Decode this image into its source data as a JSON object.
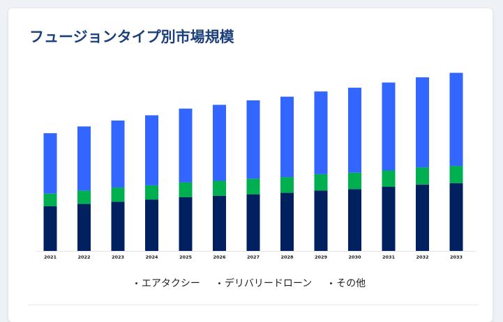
{
  "title": "フュージョンタイプ別市場規模",
  "chart_data": {
    "type": "bar",
    "stacked": true,
    "categories": [
      "2021",
      "2022",
      "2023",
      "2024",
      "2025",
      "2026",
      "2027",
      "2028",
      "2029",
      "2030",
      "2031",
      "2032",
      "2033"
    ],
    "series": [
      {
        "name": "エアタクシー",
        "color": "#002060",
        "values": [
          60,
          63,
          66,
          69,
          72,
          74,
          76,
          78,
          81,
          83,
          86,
          89,
          91
        ]
      },
      {
        "name": "デリバリードローン",
        "color": "#00b050",
        "values": [
          17,
          18,
          19,
          19,
          20,
          20,
          21,
          21,
          22,
          22,
          22,
          23,
          23
        ]
      },
      {
        "name": "その他",
        "color": "#3366ff",
        "values": [
          81,
          86,
          90,
          94,
          99,
          102,
          105,
          108,
          111,
          114,
          118,
          121,
          125
        ]
      }
    ],
    "ylim": [
      0,
      260
    ],
    "grid": false,
    "legend_position": "bottom"
  }
}
